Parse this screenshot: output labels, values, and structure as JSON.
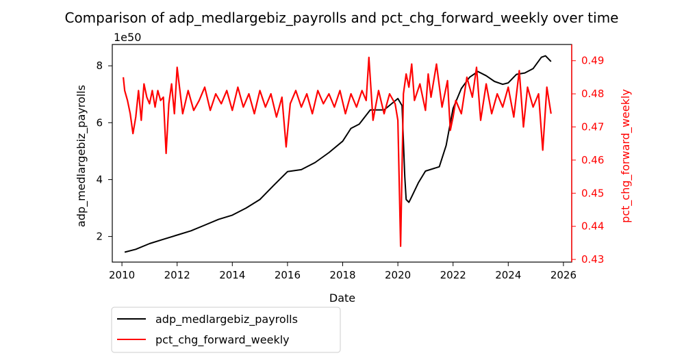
{
  "chart_data": {
    "type": "line",
    "title": "Comparison of adp_medlargebiz_payrolls and pct_chg_forward_weekly over time",
    "xlabel": "Date",
    "xlim": [
      2009.65,
      2026.3
    ],
    "x_ticks": [
      2010,
      2012,
      2014,
      2016,
      2018,
      2020,
      2022,
      2024,
      2026
    ],
    "grid": false,
    "legend_placement": "below-left",
    "left_axis": {
      "label": "adp_medlargebiz_payrolls",
      "color": "#000000",
      "ylim": [
        1.1,
        8.75
      ],
      "ticks": [
        2,
        4,
        6,
        8
      ],
      "exponent_label": "1e50"
    },
    "right_axis": {
      "label": "pct_chg_forward_weekly",
      "color": "#ff0000",
      "ylim": [
        0.4292,
        0.4949
      ],
      "ticks": [
        0.43,
        0.44,
        0.45,
        0.46,
        0.47,
        0.48,
        0.49
      ]
    },
    "series": [
      {
        "name": "adp_medlargebiz_payrolls",
        "axis": "left",
        "color": "#000000",
        "x": [
          2010.1,
          2010.5,
          2011.0,
          2011.5,
          2012.0,
          2012.5,
          2013.0,
          2013.5,
          2014.0,
          2014.5,
          2015.0,
          2015.5,
          2016.0,
          2016.5,
          2017.0,
          2017.5,
          2018.0,
          2018.3,
          2018.6,
          2019.0,
          2019.5,
          2020.0,
          2020.15,
          2020.25,
          2020.3,
          2020.4,
          2020.5,
          2020.75,
          2021.0,
          2021.5,
          2021.75,
          2022.0,
          2022.3,
          2022.6,
          2022.9,
          2023.2,
          2023.5,
          2023.8,
          2024.0,
          2024.3,
          2024.6,
          2024.9,
          2025.2,
          2025.35,
          2025.55
        ],
        "y": [
          1.45,
          1.55,
          1.75,
          1.9,
          2.05,
          2.2,
          2.4,
          2.6,
          2.75,
          3.0,
          3.3,
          3.8,
          4.28,
          4.35,
          4.6,
          4.95,
          5.35,
          5.8,
          5.95,
          6.45,
          6.45,
          6.85,
          6.6,
          4.1,
          3.3,
          3.2,
          3.4,
          3.9,
          4.3,
          4.45,
          5.2,
          6.5,
          7.2,
          7.6,
          7.8,
          7.65,
          7.45,
          7.35,
          7.4,
          7.7,
          7.75,
          7.9,
          8.3,
          8.35,
          8.15
        ]
      },
      {
        "name": "pct_chg_forward_weekly",
        "axis": "right",
        "color": "#ff0000",
        "x": [
          2010.05,
          2010.1,
          2010.2,
          2010.3,
          2010.4,
          2010.5,
          2010.6,
          2010.7,
          2010.8,
          2010.9,
          2011.0,
          2011.1,
          2011.2,
          2011.3,
          2011.4,
          2011.5,
          2011.6,
          2011.7,
          2011.8,
          2011.9,
          2012.0,
          2012.2,
          2012.4,
          2012.6,
          2012.8,
          2013.0,
          2013.2,
          2013.4,
          2013.6,
          2013.8,
          2014.0,
          2014.2,
          2014.4,
          2014.6,
          2014.8,
          2015.0,
          2015.2,
          2015.4,
          2015.6,
          2015.8,
          2015.95,
          2016.1,
          2016.3,
          2016.5,
          2016.7,
          2016.9,
          2017.1,
          2017.3,
          2017.5,
          2017.7,
          2017.9,
          2018.1,
          2018.3,
          2018.5,
          2018.7,
          2018.85,
          2018.95,
          2019.1,
          2019.3,
          2019.5,
          2019.7,
          2019.9,
          2020.0,
          2020.1,
          2020.2,
          2020.3,
          2020.4,
          2020.5,
          2020.6,
          2020.8,
          2021.0,
          2021.1,
          2021.2,
          2021.4,
          2021.6,
          2021.8,
          2021.9,
          2022.0,
          2022.1,
          2022.3,
          2022.5,
          2022.7,
          2022.85,
          2023.0,
          2023.2,
          2023.4,
          2023.6,
          2023.8,
          2024.0,
          2024.2,
          2024.4,
          2024.55,
          2024.7,
          2024.9,
          2025.1,
          2025.25,
          2025.4,
          2025.55
        ],
        "y": [
          0.485,
          0.481,
          0.478,
          0.474,
          0.468,
          0.473,
          0.481,
          0.472,
          0.483,
          0.479,
          0.477,
          0.481,
          0.476,
          0.481,
          0.478,
          0.479,
          0.462,
          0.477,
          0.483,
          0.474,
          0.488,
          0.474,
          0.481,
          0.475,
          0.478,
          0.482,
          0.475,
          0.48,
          0.477,
          0.481,
          0.475,
          0.482,
          0.476,
          0.48,
          0.474,
          0.481,
          0.476,
          0.48,
          0.473,
          0.479,
          0.464,
          0.477,
          0.481,
          0.476,
          0.48,
          0.474,
          0.481,
          0.477,
          0.48,
          0.476,
          0.481,
          0.474,
          0.48,
          0.476,
          0.481,
          0.478,
          0.491,
          0.472,
          0.481,
          0.474,
          0.48,
          0.477,
          0.472,
          0.434,
          0.48,
          0.486,
          0.482,
          0.489,
          0.478,
          0.483,
          0.475,
          0.486,
          0.479,
          0.489,
          0.476,
          0.484,
          0.469,
          0.473,
          0.478,
          0.474,
          0.485,
          0.479,
          0.488,
          0.472,
          0.483,
          0.474,
          0.48,
          0.476,
          0.482,
          0.473,
          0.487,
          0.47,
          0.482,
          0.476,
          0.48,
          0.463,
          0.482,
          0.474
        ]
      }
    ]
  }
}
